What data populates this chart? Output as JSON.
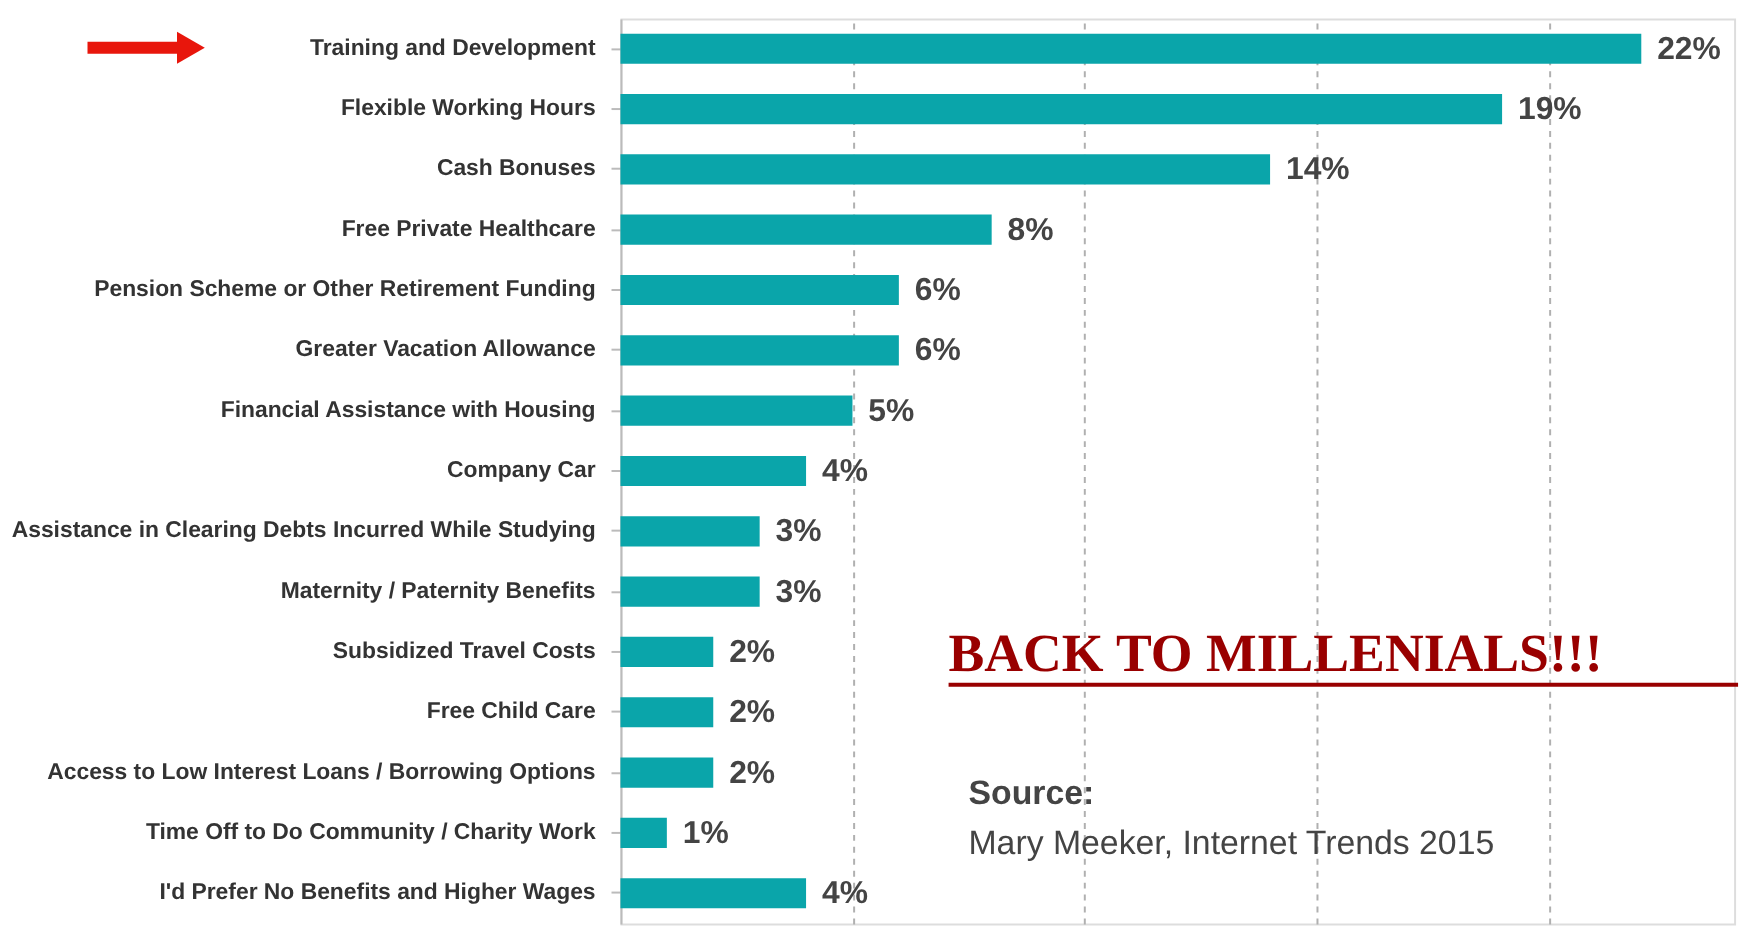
{
  "chart_data": {
    "type": "bar",
    "orientation": "horizontal",
    "categories": [
      "Training and Development",
      "Flexible Working Hours",
      "Cash Bonuses",
      "Free Private Healthcare",
      "Pension Scheme or Other Retirement Funding",
      "Greater Vacation Allowance",
      "Financial Assistance with Housing",
      "Company Car",
      "Assistance in Clearing Debts Incurred While Studying",
      "Maternity / Paternity Benefits",
      "Subsidized Travel Costs",
      "Free Child Care",
      "Access to Low Interest Loans / Borrowing Options",
      "Time Off to Do Community / Charity Work",
      "I'd Prefer No Benefits and Higher Wages"
    ],
    "values": [
      22,
      19,
      14,
      8,
      6,
      6,
      5,
      4,
      3,
      3,
      2,
      2,
      2,
      1,
      4
    ],
    "value_labels": [
      "22%",
      "19%",
      "14%",
      "8%",
      "6%",
      "6%",
      "5%",
      "4%",
      "3%",
      "3%",
      "2%",
      "2%",
      "2%",
      "1%",
      "4%"
    ],
    "color": "#0aa5aa",
    "xlim": [
      0,
      24
    ],
    "xticks": [
      {
        "value": 5,
        "label": null
      },
      {
        "value": 10,
        "label": null
      },
      {
        "value": 15,
        "label": null
      },
      {
        "value": 20,
        "label": null
      }
    ],
    "grid": "x",
    "tick_labels": "y",
    "annotations": [
      "BACK TO MILLENIALS!!!",
      "Source:",
      "Mary Meeker, Internet Trends 2015"
    ]
  }
}
